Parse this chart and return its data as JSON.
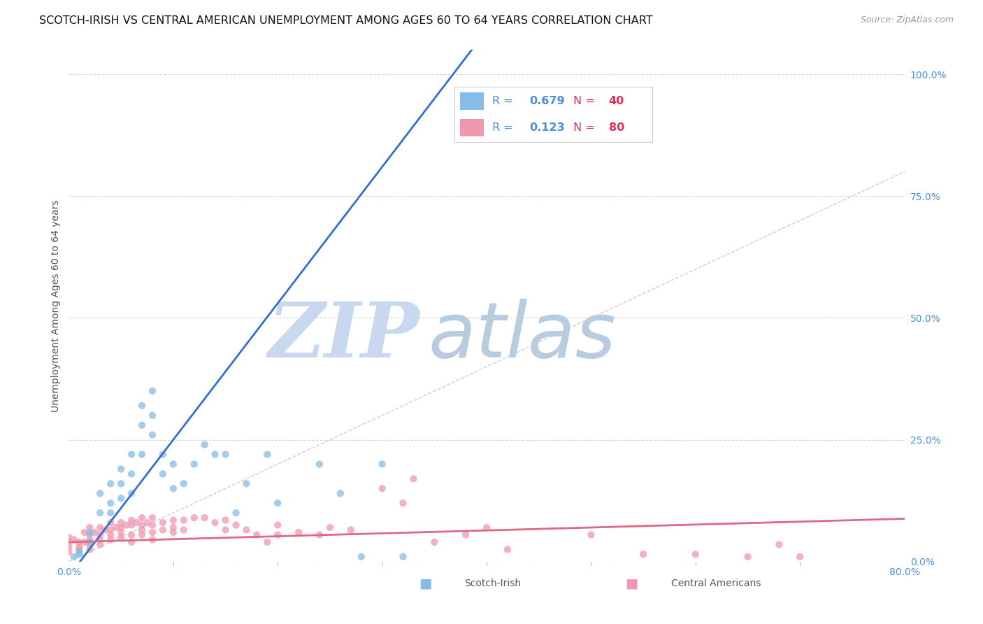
{
  "title": "SCOTCH-IRISH VS CENTRAL AMERICAN UNEMPLOYMENT AMONG AGES 60 TO 64 YEARS CORRELATION CHART",
  "source": "Source: ZipAtlas.com",
  "ylabel": "Unemployment Among Ages 60 to 64 years",
  "ytick_labels": [
    "0.0%",
    "25.0%",
    "50.0%",
    "75.0%",
    "100.0%"
  ],
  "ytick_values": [
    0.0,
    0.25,
    0.5,
    0.75,
    1.0
  ],
  "xtick_values": [
    0.0,
    0.8
  ],
  "xtick_labels": [
    "0.0%",
    "80.0%"
  ],
  "xlim": [
    0.0,
    0.8
  ],
  "ylim": [
    0.0,
    1.05
  ],
  "background_color": "#ffffff",
  "grid_color": "#cccccc",
  "watermark_zip": "ZIP",
  "watermark_atlas": "atlas",
  "watermark_color": "#c8d8ef",
  "scotch_irish_color": "#85bce8",
  "central_american_color": "#f098b0",
  "scotch_irish_R": 0.679,
  "scotch_irish_N": 40,
  "central_american_R": 0.123,
  "central_american_N": 80,
  "legend_R_color": "#4a90d9",
  "legend_N_color": "#e0305a",
  "title_fontsize": 11.5,
  "axis_label_fontsize": 10,
  "tick_fontsize": 10,
  "scotch_irish_line_slope": 2.8,
  "scotch_irish_line_intercept": -0.03,
  "central_american_line_slope": 0.06,
  "central_american_line_intercept": 0.04,
  "diagonal_line_color": "#bbbbbb",
  "scotch_irish_line_color": "#3070d0",
  "central_american_line_color": "#e06880",
  "scotch_irish_scatter": [
    [
      0.005,
      0.01
    ],
    [
      0.01,
      0.015
    ],
    [
      0.01,
      0.02
    ],
    [
      0.02,
      0.04
    ],
    [
      0.02,
      0.06
    ],
    [
      0.03,
      0.1
    ],
    [
      0.03,
      0.14
    ],
    [
      0.04,
      0.1
    ],
    [
      0.04,
      0.12
    ],
    [
      0.04,
      0.16
    ],
    [
      0.05,
      0.13
    ],
    [
      0.05,
      0.16
    ],
    [
      0.05,
      0.19
    ],
    [
      0.06,
      0.14
    ],
    [
      0.06,
      0.18
    ],
    [
      0.06,
      0.22
    ],
    [
      0.07,
      0.22
    ],
    [
      0.07,
      0.28
    ],
    [
      0.07,
      0.32
    ],
    [
      0.08,
      0.26
    ],
    [
      0.08,
      0.3
    ],
    [
      0.08,
      0.35
    ],
    [
      0.09,
      0.18
    ],
    [
      0.09,
      0.22
    ],
    [
      0.1,
      0.15
    ],
    [
      0.1,
      0.2
    ],
    [
      0.11,
      0.16
    ],
    [
      0.12,
      0.2
    ],
    [
      0.13,
      0.24
    ],
    [
      0.14,
      0.22
    ],
    [
      0.15,
      0.22
    ],
    [
      0.16,
      0.1
    ],
    [
      0.17,
      0.16
    ],
    [
      0.19,
      0.22
    ],
    [
      0.2,
      0.12
    ],
    [
      0.24,
      0.2
    ],
    [
      0.26,
      0.14
    ],
    [
      0.3,
      0.2
    ],
    [
      0.28,
      0.01
    ],
    [
      0.32,
      0.01
    ]
  ],
  "central_american_scatter": [
    [
      0.0,
      0.05
    ],
    [
      0.0,
      0.04
    ],
    [
      0.0,
      0.03
    ],
    [
      0.0,
      0.02
    ],
    [
      0.005,
      0.045
    ],
    [
      0.01,
      0.04
    ],
    [
      0.01,
      0.03
    ],
    [
      0.01,
      0.025
    ],
    [
      0.015,
      0.04
    ],
    [
      0.015,
      0.06
    ],
    [
      0.02,
      0.07
    ],
    [
      0.02,
      0.055
    ],
    [
      0.02,
      0.045
    ],
    [
      0.02,
      0.035
    ],
    [
      0.02,
      0.025
    ],
    [
      0.025,
      0.06
    ],
    [
      0.03,
      0.07
    ],
    [
      0.03,
      0.055
    ],
    [
      0.03,
      0.045
    ],
    [
      0.03,
      0.035
    ],
    [
      0.035,
      0.065
    ],
    [
      0.04,
      0.08
    ],
    [
      0.04,
      0.065
    ],
    [
      0.04,
      0.055
    ],
    [
      0.04,
      0.045
    ],
    [
      0.045,
      0.07
    ],
    [
      0.05,
      0.08
    ],
    [
      0.05,
      0.07
    ],
    [
      0.05,
      0.06
    ],
    [
      0.05,
      0.05
    ],
    [
      0.055,
      0.075
    ],
    [
      0.06,
      0.085
    ],
    [
      0.06,
      0.075
    ],
    [
      0.06,
      0.055
    ],
    [
      0.06,
      0.04
    ],
    [
      0.065,
      0.08
    ],
    [
      0.07,
      0.09
    ],
    [
      0.07,
      0.075
    ],
    [
      0.07,
      0.065
    ],
    [
      0.07,
      0.055
    ],
    [
      0.075,
      0.08
    ],
    [
      0.08,
      0.09
    ],
    [
      0.08,
      0.075
    ],
    [
      0.08,
      0.06
    ],
    [
      0.08,
      0.045
    ],
    [
      0.09,
      0.08
    ],
    [
      0.09,
      0.065
    ],
    [
      0.1,
      0.085
    ],
    [
      0.1,
      0.07
    ],
    [
      0.1,
      0.06
    ],
    [
      0.11,
      0.085
    ],
    [
      0.11,
      0.065
    ],
    [
      0.12,
      0.09
    ],
    [
      0.13,
      0.09
    ],
    [
      0.14,
      0.08
    ],
    [
      0.15,
      0.085
    ],
    [
      0.15,
      0.065
    ],
    [
      0.16,
      0.075
    ],
    [
      0.17,
      0.065
    ],
    [
      0.18,
      0.055
    ],
    [
      0.19,
      0.04
    ],
    [
      0.2,
      0.075
    ],
    [
      0.2,
      0.055
    ],
    [
      0.22,
      0.06
    ],
    [
      0.24,
      0.055
    ],
    [
      0.25,
      0.07
    ],
    [
      0.27,
      0.065
    ],
    [
      0.3,
      0.15
    ],
    [
      0.32,
      0.12
    ],
    [
      0.33,
      0.17
    ],
    [
      0.35,
      0.04
    ],
    [
      0.38,
      0.055
    ],
    [
      0.4,
      0.07
    ],
    [
      0.42,
      0.025
    ],
    [
      0.5,
      0.055
    ],
    [
      0.55,
      0.015
    ],
    [
      0.6,
      0.015
    ],
    [
      0.65,
      0.01
    ],
    [
      0.68,
      0.035
    ],
    [
      0.7,
      0.01
    ]
  ]
}
